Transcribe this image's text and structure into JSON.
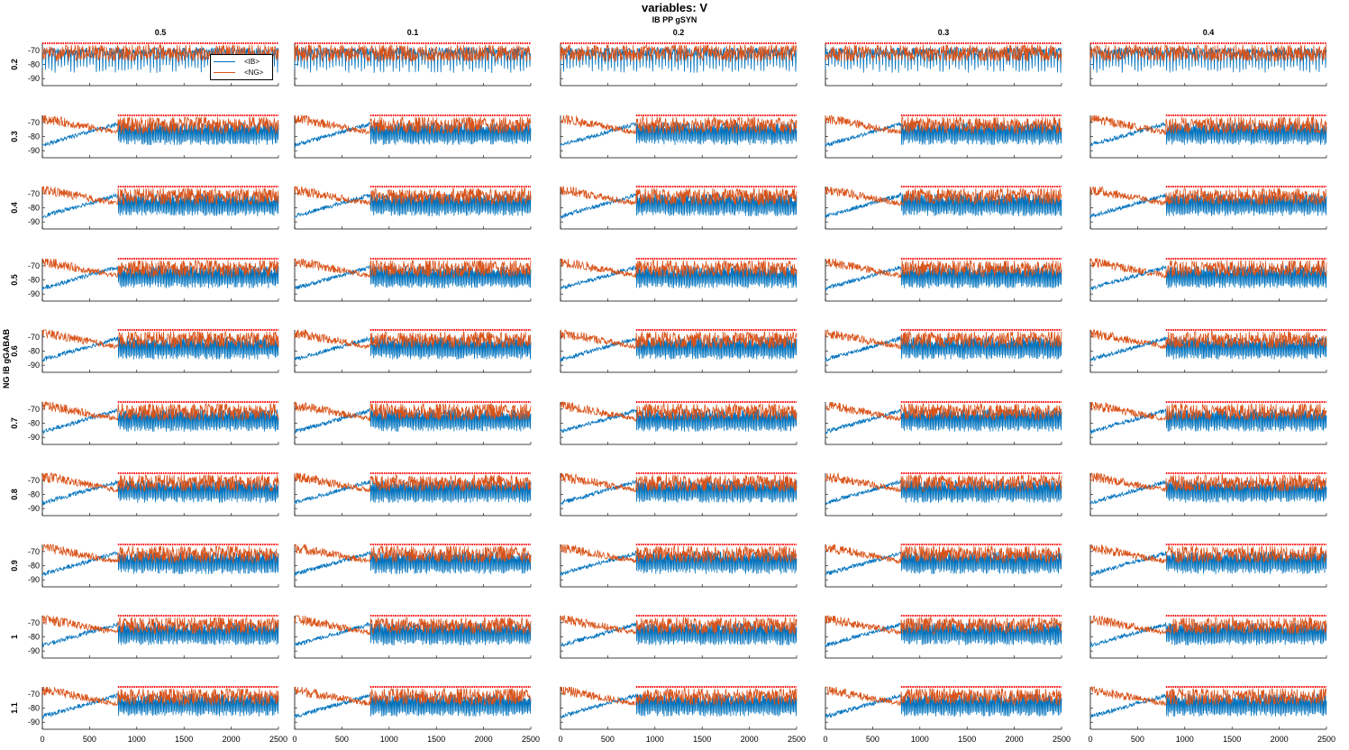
{
  "figure": {
    "title": "variables: V",
    "subtitle": "IB PP gSYN",
    "row_axis_label": "NG IB gGABAB"
  },
  "legend": {
    "items": [
      {
        "label": "<IB>",
        "color": "#0072BD"
      },
      {
        "label": "<NG>",
        "color": "#D95319"
      }
    ]
  },
  "colors": {
    "ib": "#0072BD",
    "ng": "#D95319",
    "spike_markers": "#FF0000"
  },
  "chart_data": {
    "type": "line",
    "panel_grid": {
      "rows": 10,
      "cols": 5
    },
    "column_values": [
      "0.5",
      "0.1",
      "0.2",
      "0.3",
      "0.4"
    ],
    "row_values": [
      "0.2",
      "0.3",
      "0.4",
      "0.5",
      "0.6",
      "0.7",
      "0.8",
      "0.9",
      "1",
      "1.1"
    ],
    "series": [
      {
        "name": "<IB>"
      },
      {
        "name": "<NG>"
      }
    ],
    "xlim": [
      0,
      2500
    ],
    "x_ticks": [
      "0",
      "500",
      "1000",
      "1500",
      "2000",
      "2500"
    ],
    "ylim": [
      -95,
      -65
    ],
    "y_ticks": [
      "-70",
      "-80",
      "-90"
    ],
    "xlabel": "",
    "ylabel": "",
    "stimulus_onset": 800,
    "spike_marker_level": -65
  }
}
